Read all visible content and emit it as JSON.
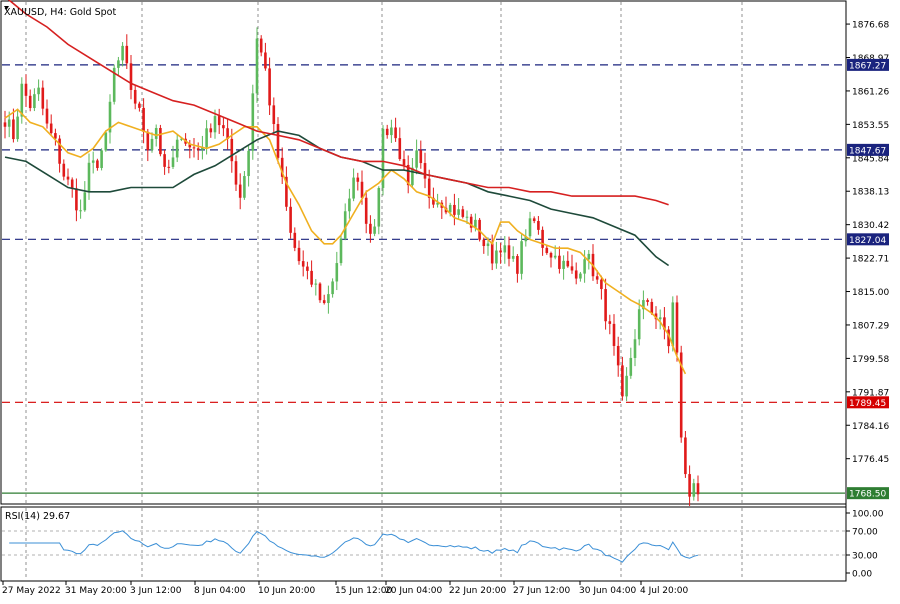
{
  "header": {
    "symbol_label": "XAUUSD, H4:  Gold Spot"
  },
  "chart_data": {
    "type": "candlestick",
    "title": "XAUUSD, H4:  Gold Spot",
    "price_axis": {
      "ylim": [
        1766.0,
        1882.0
      ],
      "ticks": [
        1876.68,
        1868.97,
        1861.26,
        1853.55,
        1845.84,
        1838.13,
        1830.42,
        1822.71,
        1815.0,
        1807.29,
        1799.58,
        1791.87,
        1784.16,
        1776.45
      ]
    },
    "x_labels": [
      "27 May 2022",
      "31 May 20:00",
      "3 Jun 12:00",
      "8 Jun 04:00",
      "10 Jun 20:00",
      "15 Jun 12:00",
      "20 Jun 04:00",
      "22 Jun 20:00",
      "27 Jun 12:00",
      "30 Jun 04:00",
      "4 Jul 20:00"
    ],
    "grid": true,
    "horizontal_levels": [
      {
        "price": 1867.27,
        "label": "1867.27",
        "style": "dashed",
        "color": "#1a237e"
      },
      {
        "price": 1847.67,
        "label": "1847.67",
        "style": "dashed",
        "color": "#1a237e"
      },
      {
        "price": 1827.04,
        "label": "1827.04",
        "style": "dashed",
        "color": "#1a237e"
      },
      {
        "price": 1789.45,
        "label": "1789.45",
        "style": "dashed",
        "color": "#d50000"
      },
      {
        "price": 1768.5,
        "label": "1768.50",
        "style": "solid",
        "color": "#2e7d32"
      }
    ],
    "colors": {
      "bull": "#5cb85c",
      "bear": "#e01a1a",
      "ma_fast": "#f0b020",
      "ma_mid": "#1e4a3a",
      "ma_slow": "#d62020",
      "rsi_line": "#3b8fd6",
      "level_blue": "#1a237e",
      "level_red": "#d50000",
      "level_green": "#2e7d32"
    },
    "series": [
      {
        "points": [
          [
            0,
            1855
          ],
          [
            3,
            1857
          ],
          [
            6,
            1854
          ],
          [
            9,
            1853
          ],
          [
            12,
            1850
          ],
          [
            15,
            1847
          ],
          [
            18,
            1846
          ],
          [
            21,
            1848
          ],
          [
            24,
            1852
          ],
          [
            27,
            1854
          ],
          [
            30,
            1853
          ],
          [
            33,
            1852
          ],
          [
            36,
            1851
          ],
          [
            40,
            1852
          ],
          [
            44,
            1849
          ],
          [
            48,
            1848
          ],
          [
            51,
            1849
          ],
          [
            54,
            1851
          ],
          [
            57,
            1853
          ],
          [
            60,
            1853
          ],
          [
            63,
            1850
          ],
          [
            65,
            1845
          ],
          [
            67,
            1840
          ],
          [
            70,
            1835
          ],
          [
            73,
            1829
          ],
          [
            76,
            1826
          ],
          [
            78,
            1826
          ],
          [
            80,
            1828
          ],
          [
            83,
            1833
          ],
          [
            86,
            1838
          ],
          [
            89,
            1840
          ],
          [
            92,
            1843
          ],
          [
            95,
            1841
          ],
          [
            98,
            1838
          ],
          [
            101,
            1837
          ],
          [
            104,
            1835
          ],
          [
            107,
            1832
          ],
          [
            110,
            1831
          ],
          [
            113,
            1829
          ],
          [
            116,
            1826
          ],
          [
            118,
            1831
          ],
          [
            120,
            1831
          ],
          [
            122,
            1829
          ],
          [
            125,
            1827
          ],
          [
            128,
            1826
          ],
          [
            131,
            1825
          ],
          [
            134,
            1825
          ],
          [
            137,
            1824
          ],
          [
            140,
            1821
          ],
          [
            143,
            1817
          ],
          [
            146,
            1815
          ],
          [
            149,
            1813
          ],
          [
            151,
            1812
          ],
          [
            154,
            1810
          ],
          [
            156,
            1808
          ],
          [
            158,
            1805
          ],
          [
            160,
            1800
          ],
          [
            162,
            1796
          ]
        ]
      },
      {
        "points": [
          [
            0,
            1846
          ],
          [
            5,
            1845
          ],
          [
            10,
            1842
          ],
          [
            15,
            1839
          ],
          [
            20,
            1838
          ],
          [
            25,
            1838
          ],
          [
            30,
            1839
          ],
          [
            35,
            1839
          ],
          [
            40,
            1839
          ],
          [
            45,
            1842
          ],
          [
            50,
            1844
          ],
          [
            55,
            1847
          ],
          [
            60,
            1850
          ],
          [
            65,
            1852
          ],
          [
            70,
            1851
          ],
          [
            75,
            1848
          ],
          [
            80,
            1846
          ],
          [
            85,
            1845
          ],
          [
            90,
            1843
          ],
          [
            95,
            1843
          ],
          [
            100,
            1842
          ],
          [
            105,
            1841
          ],
          [
            110,
            1840
          ],
          [
            115,
            1838
          ],
          [
            120,
            1837
          ],
          [
            125,
            1836
          ],
          [
            130,
            1834
          ],
          [
            135,
            1833
          ],
          [
            140,
            1832
          ],
          [
            145,
            1830
          ],
          [
            150,
            1828
          ],
          [
            155,
            1823
          ],
          [
            158,
            1821
          ]
        ]
      },
      {
        "points": [
          [
            0,
            1883
          ],
          [
            5,
            1879
          ],
          [
            10,
            1876
          ],
          [
            15,
            1872
          ],
          [
            20,
            1869
          ],
          [
            25,
            1866
          ],
          [
            30,
            1863
          ],
          [
            35,
            1861
          ],
          [
            40,
            1859
          ],
          [
            45,
            1858
          ],
          [
            50,
            1856
          ],
          [
            55,
            1854
          ],
          [
            60,
            1852
          ],
          [
            65,
            1851
          ],
          [
            70,
            1850
          ],
          [
            75,
            1848
          ],
          [
            80,
            1846
          ],
          [
            85,
            1845
          ],
          [
            90,
            1845
          ],
          [
            95,
            1844
          ],
          [
            100,
            1842
          ],
          [
            105,
            1841
          ],
          [
            110,
            1840
          ],
          [
            115,
            1839
          ],
          [
            120,
            1839
          ],
          [
            125,
            1838
          ],
          [
            130,
            1838
          ],
          [
            135,
            1837
          ],
          [
            140,
            1837
          ],
          [
            145,
            1837
          ],
          [
            150,
            1837
          ],
          [
            155,
            1836
          ],
          [
            158,
            1835
          ]
        ]
      }
    ],
    "rsi": {
      "label": "RSI(14) 29.67",
      "period": 14,
      "value": 29.67,
      "ylim": [
        0,
        100
      ],
      "ticks": [
        100.0,
        70.0,
        30.0,
        0.0
      ],
      "tick_labels": [
        "100.00",
        "70.00",
        "30.00",
        "0.00"
      ]
    }
  }
}
